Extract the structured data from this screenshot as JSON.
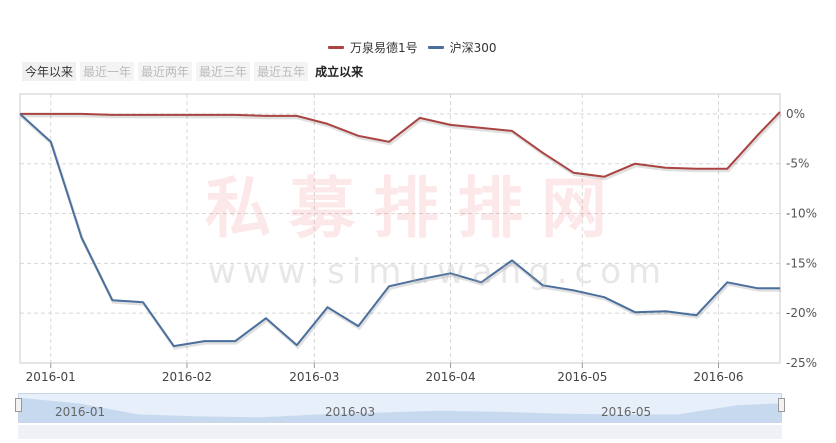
{
  "legend": {
    "series1_label": "万泉易德1号",
    "series2_label": "沪深300"
  },
  "ranges": {
    "ytd": "今年以来",
    "one_year": "最近一年",
    "two_years": "最近两年",
    "three_years": "最近三年",
    "five_years": "最近五年",
    "since_inception": "成立以来"
  },
  "watermark": {
    "text_cn": "私募排排网",
    "text_url": "www.simuwang.com"
  },
  "navigator": {
    "labels": [
      "2016-01",
      "2016-03",
      "2016-05"
    ]
  },
  "colors": {
    "series1": "#a94442",
    "series2": "#4a6f9c"
  },
  "chart_data": {
    "type": "line",
    "x_ticks": [
      "2016-01",
      "2016-02",
      "2016-03",
      "2016-04",
      "2016-05",
      "2016-06"
    ],
    "y_ticks": [
      "0%",
      "-5%",
      "-10%",
      "-15%",
      "-20%",
      "-25%"
    ],
    "ylim": [
      -25,
      2
    ],
    "xlim": [
      "2015-12-25",
      "2016-06-15"
    ],
    "legend_position": "top-center",
    "grid": true,
    "series": [
      {
        "name": "万泉易德1号",
        "x": [
          "2015-12-25",
          "2016-01-01",
          "2016-01-08",
          "2016-01-15",
          "2016-01-22",
          "2016-01-29",
          "2016-02-05",
          "2016-02-12",
          "2016-02-19",
          "2016-02-26",
          "2016-03-04",
          "2016-03-11",
          "2016-03-18",
          "2016-03-25",
          "2016-04-01",
          "2016-04-08",
          "2016-04-15",
          "2016-04-22",
          "2016-04-29",
          "2016-05-06",
          "2016-05-13",
          "2016-05-20",
          "2016-05-27",
          "2016-06-03",
          "2016-06-10",
          "2016-06-15"
        ],
        "y": [
          0,
          0,
          0,
          -0.1,
          -0.1,
          -0.1,
          -0.1,
          -0.1,
          -0.2,
          -0.2,
          -1.0,
          -2.2,
          -2.8,
          -0.4,
          -1.1,
          -1.4,
          -1.7,
          -3.9,
          -5.9,
          -6.3,
          -5.0,
          -5.4,
          -5.5,
          -5.5,
          -2.1,
          0.2
        ]
      },
      {
        "name": "沪深300",
        "x": [
          "2015-12-25",
          "2016-01-01",
          "2016-01-08",
          "2016-01-15",
          "2016-01-22",
          "2016-01-29",
          "2016-02-05",
          "2016-02-12",
          "2016-02-19",
          "2016-02-26",
          "2016-03-04",
          "2016-03-11",
          "2016-03-18",
          "2016-03-25",
          "2016-04-01",
          "2016-04-08",
          "2016-04-15",
          "2016-04-22",
          "2016-04-29",
          "2016-05-06",
          "2016-05-13",
          "2016-05-20",
          "2016-05-27",
          "2016-06-03",
          "2016-06-10",
          "2016-06-15"
        ],
        "y": [
          0,
          -2.8,
          -12.4,
          -18.7,
          -18.9,
          -23.3,
          -22.8,
          -22.8,
          -20.5,
          -23.2,
          -19.4,
          -21.3,
          -17.3,
          -16.6,
          -16.0,
          -16.9,
          -14.7,
          -17.2,
          -17.7,
          -18.4,
          -19.9,
          -19.8,
          -20.2,
          -16.9,
          -17.5,
          -17.5
        ]
      }
    ]
  }
}
